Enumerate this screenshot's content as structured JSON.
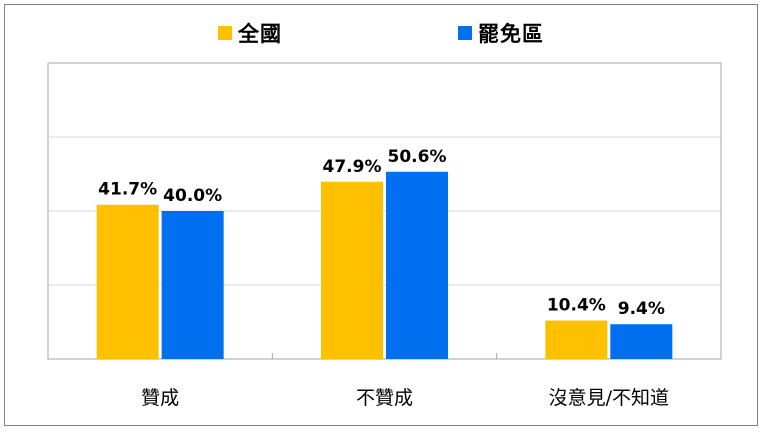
{
  "chart_data": {
    "type": "bar",
    "categories": [
      "贊成",
      "不贊成",
      "沒意見/不知道"
    ],
    "series": [
      {
        "name": "全國",
        "color": "#FFC000",
        "values": [
          41.7,
          47.9,
          10.4
        ],
        "labels": [
          "41.7%",
          "47.9%",
          "10.4%"
        ]
      },
      {
        "name": "罷免區",
        "color": "#0070F0",
        "values": [
          40.0,
          50.6,
          9.4
        ],
        "labels": [
          "40.0%",
          "50.6%",
          "9.4%"
        ]
      }
    ],
    "ylim": [
      0,
      80
    ],
    "gridlines": [
      20,
      40,
      60
    ],
    "grid": true,
    "legend_position": "top-center",
    "title": "",
    "xlabel": "",
    "ylabel": ""
  }
}
